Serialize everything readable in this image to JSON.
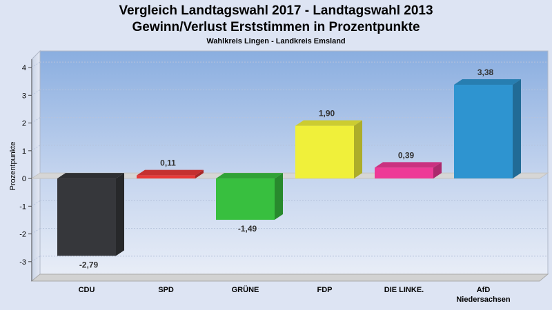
{
  "chart_data": {
    "type": "bar",
    "title": "Vergleich Landtagswahl 2017 - Landtagswahl 2013",
    "title_line2": "Gewinn/Verlust Erststimmen in Prozentpunkte",
    "subtitle": "Wahlkreis Lingen - Landkreis Emsland",
    "ylabel": "Prozentpunkte",
    "xlabel": "",
    "categories": [
      "CDU",
      "SPD",
      "GRÜNE",
      "FDP",
      "DIE LINKE.",
      "AfD Niedersachsen"
    ],
    "category_lines": [
      [
        "CDU"
      ],
      [
        "SPD"
      ],
      [
        "GRÜNE"
      ],
      [
        "FDP"
      ],
      [
        "DIE LINKE."
      ],
      [
        "AfD",
        "Niedersachsen"
      ]
    ],
    "values": [
      -2.79,
      0.11,
      -1.49,
      1.9,
      0.39,
      3.38
    ],
    "value_labels": [
      "-2,79",
      "0,11",
      "-1,49",
      "1,90",
      "0,39",
      "3,38"
    ],
    "colors": [
      "#36373b",
      "#e83838",
      "#38bf3f",
      "#f0f03a",
      "#ee3a97",
      "#2e94d0"
    ],
    "ylim": [
      -3.7,
      4.3
    ],
    "yticks": [
      4,
      3,
      2,
      1,
      0,
      -1,
      -2,
      -3
    ],
    "ytick_labels": [
      "4",
      "3",
      "2",
      "1",
      "0",
      "-1",
      "-2",
      "-3"
    ],
    "grid": true,
    "legend": "none"
  }
}
